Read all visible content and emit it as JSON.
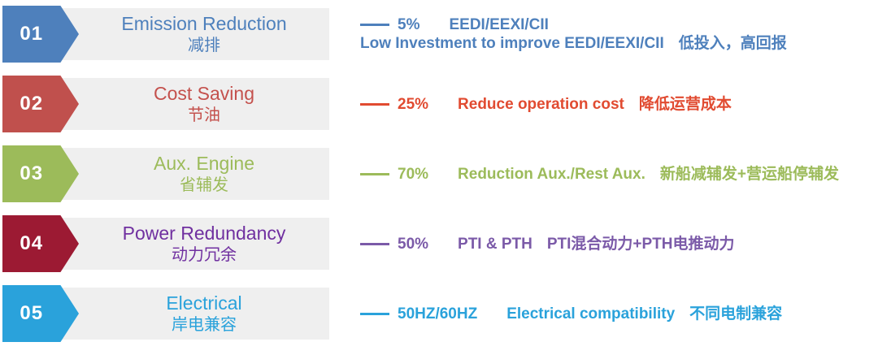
{
  "band_bg": "#efefef",
  "rows": [
    {
      "number": "01",
      "title": "Emission Reduction",
      "subtitle": "减排",
      "colors": {
        "arrow": "#4e80bc",
        "title": "#4e80bc",
        "detail": "#4e80bc"
      },
      "detail": {
        "value": "5%",
        "label": "EEDI/EEXI/CII",
        "line2_en": "Low Investment to improve EEDI/EEXI/CII",
        "line2_zh": "低投入，高回报"
      }
    },
    {
      "number": "02",
      "title": "Cost Saving",
      "subtitle": "节油",
      "colors": {
        "arrow": "#c0504d",
        "title": "#c4514d",
        "detail": "#e14b31"
      },
      "detail": {
        "value": "25%",
        "label": "Reduce operation cost",
        "zh": "降低运营成本"
      }
    },
    {
      "number": "03",
      "title": "Aux. Engine",
      "subtitle": "省辅发",
      "colors": {
        "arrow": "#9cbb5a",
        "title": "#9cbb5a",
        "detail": "#9cbb5a"
      },
      "detail": {
        "value": "70%",
        "label": "Reduction Aux./Rest Aux.",
        "zh": "新船减辅发+营运船停辅发"
      }
    },
    {
      "number": "04",
      "title": "Power Redundancy",
      "subtitle": "动力冗余",
      "colors": {
        "arrow": "#9c1a33",
        "title": "#7030a0",
        "detail": "#7b5aa8"
      },
      "detail": {
        "value": "50%",
        "label": "PTI & PTH",
        "zh": "PTI混合动力+PTH电推动力"
      }
    },
    {
      "number": "05",
      "title": "Electrical",
      "subtitle": "岸电兼容",
      "colors": {
        "arrow": "#2aa2db",
        "title": "#2aa2db",
        "detail": "#2aa2db"
      },
      "detail": {
        "value": "50HZ/60HZ",
        "label": "Electrical compatibility",
        "zh": "不同电制兼容"
      }
    }
  ]
}
